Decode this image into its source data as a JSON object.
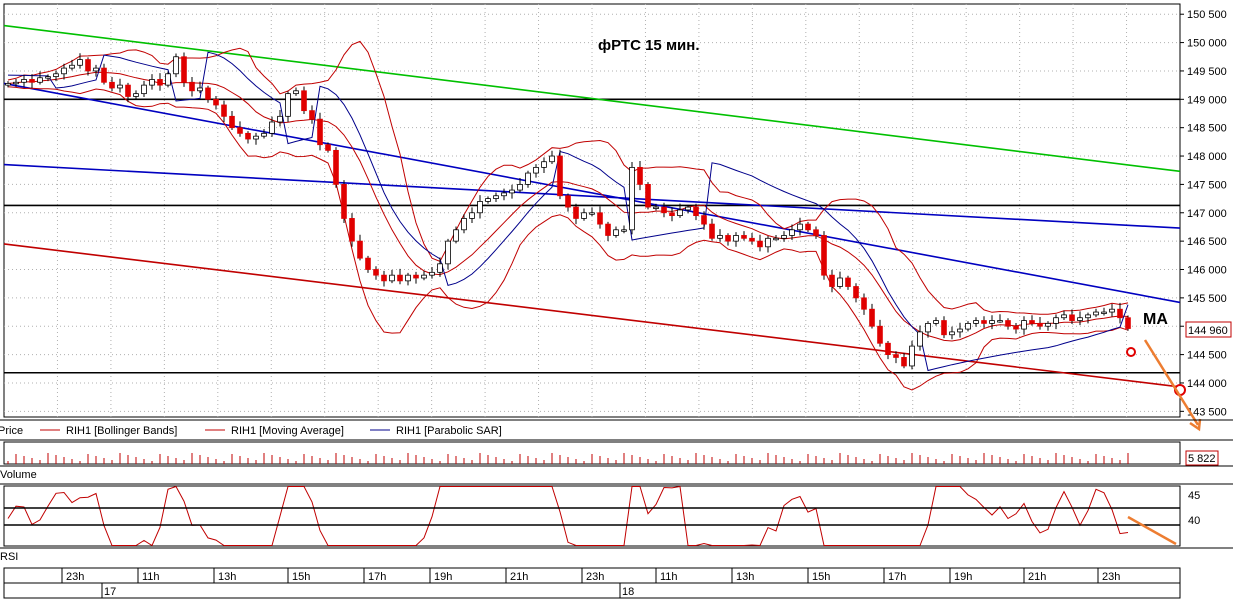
{
  "chart_data": {
    "type": "candlestick",
    "title": "фРТС   15 мин.",
    "annotation": "MA",
    "instrument": "RIH1",
    "price_axis": {
      "ticks": [
        "150 500",
        "150 000",
        "149 500",
        "149 000",
        "148 500",
        "148 000",
        "147 500",
        "147 000",
        "146 500",
        "146 000",
        "145 500",
        "145 000",
        "144 500",
        "144 000",
        "143 500"
      ],
      "tick_values": [
        150500,
        150000,
        149500,
        149000,
        148500,
        148000,
        147500,
        147000,
        146500,
        146000,
        145500,
        145000,
        144500,
        144000,
        143500
      ],
      "range": [
        143400,
        150680
      ],
      "last_price_label": "144 960"
    },
    "volume_axis": {
      "last_value_label": "5 822"
    },
    "rsi_axis": {
      "ticks": [
        "45",
        "40"
      ],
      "tick_values": [
        45,
        40
      ]
    },
    "time_axis": {
      "hour_labels": [
        "23h",
        "11h",
        "13h",
        "15h",
        "17h",
        "19h",
        "21h",
        "23h",
        "11h",
        "13h",
        "15h",
        "17h",
        "19h",
        "21h",
        "23h"
      ],
      "date_labels": [
        "17",
        "18"
      ]
    },
    "legend": [
      {
        "label": "Price",
        "color": "#000000"
      },
      {
        "label": "RIH1 [Bollinger Bands]",
        "color": "#c00000"
      },
      {
        "label": "RIH1 [Moving Average]",
        "color": "#c00000"
      },
      {
        "label": "RIH1 [Parabolic SAR]",
        "color": "#00008b"
      }
    ],
    "panels": [
      "Volume",
      "RSI"
    ],
    "horizontal_levels": [
      149000,
      147130,
      144180
    ],
    "close_series": [
      149280,
      149300,
      149350,
      149300,
      149380,
      149400,
      149450,
      149550,
      149600,
      149700,
      149500,
      149550,
      149300,
      149200,
      149250,
      149050,
      149100,
      149250,
      149350,
      149250,
      149450,
      149750,
      149300,
      149150,
      149200,
      149000,
      148900,
      148700,
      148500,
      148400,
      148300,
      148350,
      148400,
      148600,
      148700,
      149100,
      149150,
      148800,
      148650,
      148200,
      148100,
      147500,
      146900,
      146500,
      146200,
      146000,
      145900,
      145800,
      145900,
      145800,
      145900,
      145850,
      145900,
      145950,
      146100,
      146500,
      146700,
      146900,
      147000,
      147200,
      147250,
      147300,
      147350,
      147400,
      147500,
      147700,
      147800,
      147900,
      148000,
      147300,
      147100,
      146900,
      147000,
      147000,
      146800,
      146600,
      146700,
      146700,
      147800,
      147500,
      147100,
      147100,
      147000,
      146950,
      147050,
      147100,
      146950,
      146800,
      146550,
      146600,
      146500,
      146600,
      146550,
      146500,
      146400,
      146550,
      146550,
      146600,
      146700,
      146800,
      146700,
      146600,
      145900,
      145700,
      145850,
      145700,
      145500,
      145300,
      145000,
      144700,
      144500,
      144450,
      144300,
      144650,
      144900,
      145050,
      145100,
      144850,
      144900,
      144950,
      145050,
      145100,
      145050,
      145100,
      145100,
      145000,
      144950,
      145100,
      145050,
      145000,
      145050,
      145150,
      145200,
      145100,
      145150,
      145200,
      145250,
      145250,
      145300,
      145150,
      144960
    ],
    "trend_lines": [
      {
        "color": "#00c000",
        "from": [
          0,
          150300
        ],
        "to": [
          141,
          147730
        ]
      },
      {
        "color": "#0000c0",
        "from": [
          0,
          149280
        ],
        "to": [
          141,
          145420
        ]
      },
      {
        "color": "#0000c0",
        "from": [
          0,
          147850
        ],
        "to": [
          141,
          146730
        ]
      },
      {
        "color": "#c00000",
        "from": [
          0,
          146450
        ],
        "to": [
          141,
          143930
        ]
      }
    ],
    "forecast_markers": [
      "circle",
      "circle",
      "arrow",
      "arrow"
    ]
  }
}
